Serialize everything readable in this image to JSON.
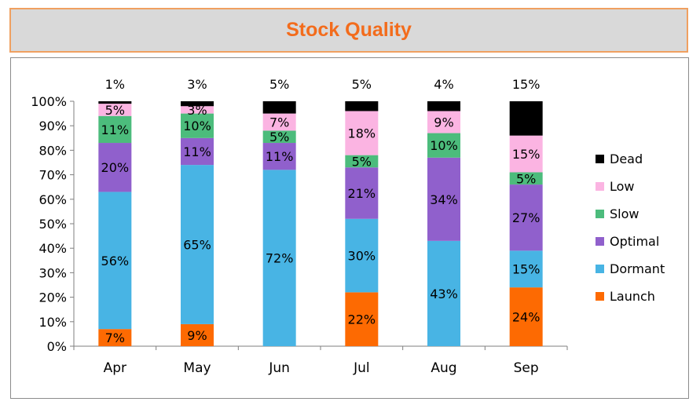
{
  "chart_data": {
    "type": "bar",
    "stacked": true,
    "title": "Stock Quality",
    "categories": [
      "Apr",
      "May",
      "Jun",
      "Jul",
      "Aug",
      "Sep"
    ],
    "y_ticks": [
      "0%",
      "10%",
      "20%",
      "30%",
      "40%",
      "50%",
      "60%",
      "70%",
      "80%",
      "90%",
      "100%"
    ],
    "ylim": [
      0,
      100
    ],
    "grid": false,
    "legend_position": "right",
    "series": [
      {
        "name": "Launch",
        "color": "#fd6a02",
        "values": [
          7,
          9,
          0,
          22,
          0,
          24
        ],
        "labels": [
          "7%",
          "9%",
          "",
          "22%",
          "",
          "24%"
        ]
      },
      {
        "name": "Dormant",
        "color": "#48b4e4",
        "values": [
          56,
          65,
          72,
          30,
          43,
          15
        ],
        "labels": [
          "56%",
          "65%",
          "72%",
          "30%",
          "43%",
          "15%"
        ]
      },
      {
        "name": "Optimal",
        "color": "#9060cc",
        "values": [
          20,
          11,
          11,
          21,
          34,
          27
        ],
        "labels": [
          "20%",
          "11%",
          "11%",
          "21%",
          "34%",
          "27%"
        ]
      },
      {
        "name": "Slow",
        "color": "#4cbc7c",
        "values": [
          11,
          10,
          5,
          5,
          10,
          5
        ],
        "labels": [
          "11%",
          "10%",
          "5%",
          "5%",
          "10%",
          "5%"
        ]
      },
      {
        "name": "Low",
        "color": "#fbb4e2",
        "values": [
          5,
          3,
          7,
          18,
          9,
          15
        ],
        "labels": [
          "5%",
          "3%",
          "7%",
          "18%",
          "9%",
          "15%"
        ]
      },
      {
        "name": "Dead",
        "color": "#000000",
        "values": [
          1,
          3,
          5,
          5,
          4,
          15
        ],
        "labels": [
          "1%",
          "3%",
          "5%",
          "5%",
          "4%",
          "15%"
        ]
      }
    ]
  }
}
